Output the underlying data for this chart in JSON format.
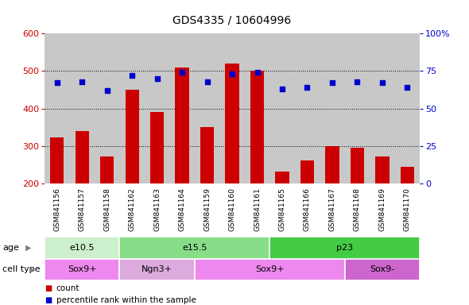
{
  "title": "GDS4335 / 10604996",
  "samples": [
    "GSM841156",
    "GSM841157",
    "GSM841158",
    "GSM841162",
    "GSM841163",
    "GSM841164",
    "GSM841159",
    "GSM841160",
    "GSM841161",
    "GSM841165",
    "GSM841166",
    "GSM841167",
    "GSM841168",
    "GSM841169",
    "GSM841170"
  ],
  "counts": [
    322,
    340,
    272,
    450,
    390,
    510,
    350,
    520,
    500,
    232,
    262,
    300,
    295,
    272,
    245
  ],
  "percentile_ranks": [
    67,
    68,
    62,
    72,
    70,
    74,
    68,
    73,
    74,
    63,
    64,
    67,
    68,
    67,
    64
  ],
  "ylim_left": [
    200,
    600
  ],
  "ylim_right": [
    0,
    100
  ],
  "yticks_left": [
    200,
    300,
    400,
    500,
    600
  ],
  "yticks_right": [
    0,
    25,
    50,
    75,
    100
  ],
  "bar_color": "#cc0000",
  "dot_color": "#0000cc",
  "grid_color": "#000000",
  "plot_bg_color": "#c8c8c8",
  "label_bg_color": "#c8c8c8",
  "age_groups": [
    {
      "label": "e10.5",
      "start": 0,
      "end": 3,
      "color": "#ccf0cc"
    },
    {
      "label": "e15.5",
      "start": 3,
      "end": 9,
      "color": "#88dd88"
    },
    {
      "label": "p23",
      "start": 9,
      "end": 15,
      "color": "#44cc44"
    }
  ],
  "cell_groups": [
    {
      "label": "Sox9+",
      "start": 0,
      "end": 3,
      "color": "#ee88ee"
    },
    {
      "label": "Ngn3+",
      "start": 3,
      "end": 6,
      "color": "#ddaadd"
    },
    {
      "label": "Sox9+",
      "start": 6,
      "end": 12,
      "color": "#ee88ee"
    },
    {
      "label": "Sox9-",
      "start": 12,
      "end": 15,
      "color": "#cc66cc"
    }
  ],
  "legend_count_color": "#cc0000",
  "legend_dot_color": "#0000cc"
}
